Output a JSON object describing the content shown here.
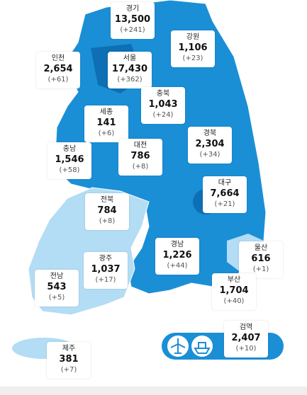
{
  "regions": [
    {
      "name": "경기",
      "total": "13,500",
      "change": "(+241)"
    },
    {
      "name": "인천",
      "total": "2,654",
      "change": "(+61)"
    },
    {
      "name": "서울",
      "total": "17,430",
      "change": "(+362)"
    },
    {
      "name": "강원",
      "total": "1,106",
      "change": "(+23)"
    },
    {
      "name": "충북",
      "total": "1,043",
      "change": "(+24)"
    },
    {
      "name": "세종",
      "total": "141",
      "change": "(+6)"
    },
    {
      "name": "대전",
      "total": "786",
      "change": "(+8)"
    },
    {
      "name": "충남",
      "total": "1,546",
      "change": "(+58)"
    },
    {
      "name": "경북",
      "total": "2,304",
      "change": "(+34)"
    },
    {
      "name": "대구",
      "total": "7,664",
      "change": "(+21)"
    },
    {
      "name": "전북",
      "total": "784",
      "change": "(+8)"
    },
    {
      "name": "광주",
      "total": "1,037",
      "change": "(+17)"
    },
    {
      "name": "경남",
      "total": "1,226",
      "change": "(+44)"
    },
    {
      "name": "울산",
      "total": "616",
      "change": "(+1)"
    },
    {
      "name": "부산",
      "total": "1,704",
      "change": "(+40)"
    },
    {
      "name": "전남",
      "total": "543",
      "change": "(+5)"
    },
    {
      "name": "제주",
      "total": "381",
      "change": "(+7)"
    },
    {
      "name": "검역",
      "total": "2,407",
      "change": "(+10)"
    }
  ]
}
